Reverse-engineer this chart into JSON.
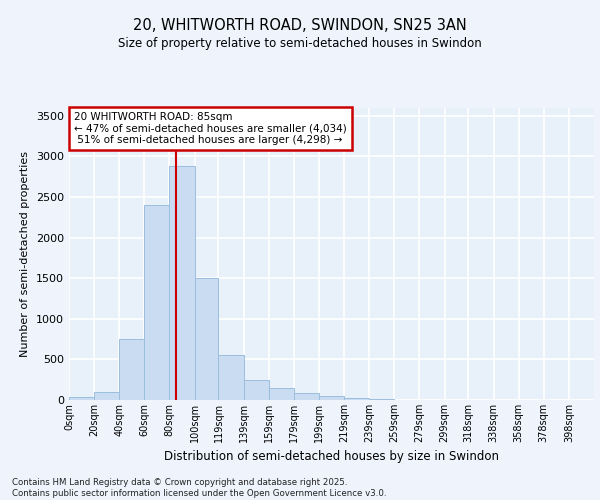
{
  "title1": "20, WHITWORTH ROAD, SWINDON, SN25 3AN",
  "title2": "Size of property relative to semi-detached houses in Swindon",
  "xlabel": "Distribution of semi-detached houses by size in Swindon",
  "ylabel": "Number of semi-detached properties",
  "bin_labels": [
    "0sqm",
    "20sqm",
    "40sqm",
    "60sqm",
    "80sqm",
    "100sqm",
    "119sqm",
    "139sqm",
    "159sqm",
    "179sqm",
    "199sqm",
    "219sqm",
    "239sqm",
    "259sqm",
    "279sqm",
    "299sqm",
    "318sqm",
    "338sqm",
    "358sqm",
    "378sqm",
    "398sqm"
  ],
  "bar_heights": [
    40,
    100,
    750,
    2400,
    2875,
    1500,
    550,
    250,
    150,
    90,
    50,
    20,
    10,
    5,
    5,
    5,
    0,
    0,
    0,
    0,
    0
  ],
  "bar_color": "#c9dcf2",
  "bar_edge_color": "#9bbedd",
  "property_sqm": 85,
  "property_label": "20 WHITWORTH ROAD: 85sqm",
  "pct_smaller": 47,
  "count_smaller": 4034,
  "pct_larger": 51,
  "count_larger": 4298,
  "vline_color": "#cc0000",
  "annotation_box_color": "#cc0000",
  "plot_bg_color": "#e8f0fa",
  "fig_bg_color": "#eef3fc",
  "grid_color": "#ffffff",
  "ylim": [
    0,
    3600
  ],
  "yticks": [
    0,
    500,
    1000,
    1500,
    2000,
    2500,
    3000,
    3500
  ],
  "footer": "Contains HM Land Registry data © Crown copyright and database right 2025.\nContains public sector information licensed under the Open Government Licence v3.0.",
  "bin_edges": [
    0,
    20,
    40,
    60,
    80,
    100,
    119,
    139,
    159,
    179,
    199,
    219,
    239,
    259,
    279,
    299,
    318,
    338,
    358,
    378,
    398,
    418
  ]
}
